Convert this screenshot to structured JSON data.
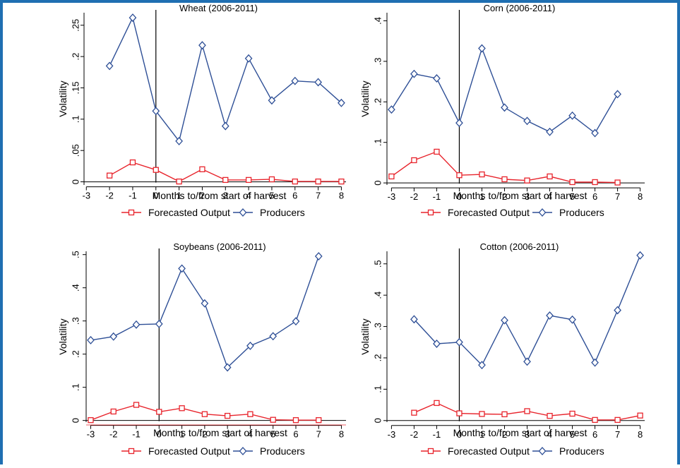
{
  "colors": {
    "forecast": "#e8242c",
    "producers": "#2e4f96",
    "frame": "#1f6fb2"
  },
  "chart_data": [
    {
      "type": "line",
      "title": "Wheat (2006-2011)",
      "xlabel": "Months to/from start of harvest",
      "ylabel": "Volatility",
      "xticks": [
        -3,
        -2,
        -1,
        0,
        1,
        2,
        3,
        4,
        5,
        6,
        7,
        8
      ],
      "yticks": [
        0,
        0.05,
        0.1,
        0.15,
        0.2,
        0.25
      ],
      "ytick_labels": [
        "0",
        ".05",
        ".1",
        ".15",
        ".2",
        ".25"
      ],
      "ylim": [
        -0.005,
        0.27
      ],
      "xlim": [
        -3.1,
        8.2
      ],
      "vline_x": 0,
      "legend": "bottom",
      "series": [
        {
          "name": "Forecasted Output",
          "marker": "square-icon",
          "x": [
            -2,
            -1,
            0,
            1,
            2,
            3,
            4,
            5,
            6,
            7,
            8
          ],
          "y": [
            0.01,
            0.031,
            0.019,
            0.0005,
            0.02,
            0.003,
            0.003,
            0.004,
            0.0005,
            0.0005,
            0.0005
          ]
        },
        {
          "name": "Producers",
          "marker": "diamond-icon",
          "x": [
            -2,
            -1,
            0,
            1,
            2,
            3,
            4,
            5,
            6,
            7,
            8
          ],
          "y": [
            0.185,
            0.262,
            0.113,
            0.065,
            0.218,
            0.089,
            0.197,
            0.13,
            0.161,
            0.159,
            0.126
          ]
        }
      ]
    },
    {
      "type": "line",
      "title": "Corn (2006-2011)",
      "xlabel": "Months to/from start of harvest",
      "ylabel": "Volatility",
      "xticks": [
        -3,
        -2,
        -1,
        0,
        1,
        2,
        3,
        4,
        5,
        6,
        7,
        8
      ],
      "yticks": [
        0,
        0.1,
        0.2,
        0.3,
        0.4
      ],
      "ytick_labels": [
        "0",
        ".1",
        ".2",
        ".3",
        ".4"
      ],
      "ylim": [
        -0.005,
        0.42
      ],
      "xlim": [
        -3.2,
        8.2
      ],
      "vline_x": 0,
      "legend": "bottom",
      "series": [
        {
          "name": "Forecasted Output",
          "marker": "square-icon",
          "x": [
            -3,
            -2,
            -1,
            0,
            1,
            2,
            3,
            4,
            5,
            6,
            7
          ],
          "y": [
            0.016,
            0.056,
            0.077,
            0.019,
            0.021,
            0.009,
            0.006,
            0.016,
            0.002,
            0.002,
            0.001
          ]
        },
        {
          "name": "Producers",
          "marker": "diamond-icon",
          "x": [
            -3,
            -2,
            -1,
            0,
            1,
            2,
            3,
            4,
            5,
            6,
            7
          ],
          "y": [
            0.181,
            0.269,
            0.258,
            0.148,
            0.332,
            0.186,
            0.153,
            0.126,
            0.166,
            0.123,
            0.219
          ]
        }
      ]
    },
    {
      "type": "line",
      "title": "Soybeans (2006-2011)",
      "xlabel": "Months to/from start of harvest",
      "ylabel": "Volatility",
      "xticks": [
        -3,
        -2,
        -1,
        0,
        1,
        2,
        3,
        4,
        5,
        6,
        7,
        8
      ],
      "yticks": [
        0,
        0.1,
        0.2,
        0.3,
        0.4,
        0.5
      ],
      "ytick_labels": [
        "0",
        ".1",
        ".2",
        ".3",
        ".4",
        ".5"
      ],
      "ylim": [
        -0.005,
        0.51
      ],
      "xlim": [
        -3.2,
        8.2
      ],
      "vline_x": 0,
      "legend": "bottom",
      "series": [
        {
          "name": "Forecasted Output",
          "marker": "square-icon",
          "x": [
            -3,
            -2,
            -1,
            0,
            1,
            2,
            3,
            4,
            5,
            6,
            7
          ],
          "y": [
            0.001,
            0.027,
            0.047,
            0.026,
            0.037,
            0.019,
            0.014,
            0.019,
            0.002,
            0.001,
            0.001
          ]
        },
        {
          "name": "Producers",
          "marker": "diamond-icon",
          "x": [
            -3,
            -2,
            -1,
            0,
            1,
            2,
            3,
            4,
            5,
            6,
            7
          ],
          "y": [
            0.242,
            0.253,
            0.289,
            0.291,
            0.458,
            0.353,
            0.16,
            0.225,
            0.254,
            0.299,
            0.495
          ]
        }
      ]
    },
    {
      "type": "line",
      "title": "Cotton (2006-2011)",
      "xlabel": "Months to/from start of harvest",
      "ylabel": "Volatility",
      "xticks": [
        -3,
        -2,
        -1,
        0,
        1,
        2,
        3,
        4,
        5,
        6,
        7,
        8
      ],
      "yticks": [
        0,
        0.1,
        0.2,
        0.3,
        0.4,
        0.5
      ],
      "ytick_labels": [
        "0",
        ".1",
        ".2",
        ".3",
        ".4",
        ".5"
      ],
      "ylim": [
        -0.005,
        0.54
      ],
      "xlim": [
        -3.2,
        8.2
      ],
      "vline_x": 0,
      "legend": "bottom",
      "series": [
        {
          "name": "Forecasted Output",
          "marker": "square-icon",
          "x": [
            -2,
            -1,
            0,
            1,
            2,
            3,
            4,
            5,
            6,
            7,
            8
          ],
          "y": [
            0.025,
            0.056,
            0.023,
            0.021,
            0.02,
            0.03,
            0.015,
            0.022,
            0.002,
            0.002,
            0.016
          ]
        },
        {
          "name": "Producers",
          "marker": "diamond-icon",
          "x": [
            -2,
            -1,
            0,
            1,
            2,
            3,
            4,
            5,
            6,
            7,
            8
          ],
          "y": [
            0.323,
            0.245,
            0.25,
            0.177,
            0.32,
            0.188,
            0.335,
            0.322,
            0.185,
            0.352,
            0.527
          ]
        }
      ]
    }
  ]
}
